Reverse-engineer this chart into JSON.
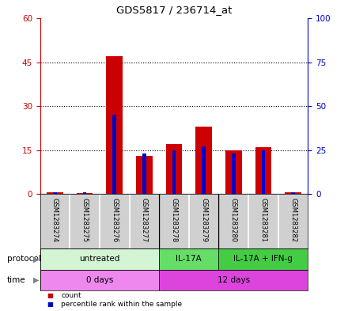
{
  "title": "GDS5817 / 236714_at",
  "samples": [
    "GSM1283274",
    "GSM1283275",
    "GSM1283276",
    "GSM1283277",
    "GSM1283278",
    "GSM1283279",
    "GSM1283280",
    "GSM1283281",
    "GSM1283282"
  ],
  "count_values": [
    0.5,
    0.3,
    47,
    13,
    17,
    23,
    15,
    16,
    0.5
  ],
  "percentile_values": [
    1.0,
    1.0,
    45.0,
    23.0,
    25.0,
    27.0,
    23.0,
    25.0,
    1.0
  ],
  "ylim_left": [
    0,
    60
  ],
  "ylim_right": [
    0,
    100
  ],
  "yticks_left": [
    0,
    15,
    30,
    45,
    60
  ],
  "yticks_right": [
    0,
    25,
    50,
    75,
    100
  ],
  "bar_color": "#cc0000",
  "percentile_color": "#0000cc",
  "bar_width": 0.55,
  "percentile_bar_width": 0.12,
  "protocol_groups": [
    {
      "label": "untreated",
      "start": 0,
      "end": 4,
      "color": "#d4f5d4"
    },
    {
      "label": "IL-17A",
      "start": 4,
      "end": 6,
      "color": "#66dd66"
    },
    {
      "label": "IL-17A + IFN-g",
      "start": 6,
      "end": 9,
      "color": "#44cc44"
    }
  ],
  "time_groups": [
    {
      "label": "0 days",
      "start": 0,
      "end": 4,
      "color": "#ee88ee"
    },
    {
      "label": "12 days",
      "start": 4,
      "end": 9,
      "color": "#dd44dd"
    }
  ],
  "legend_count_label": "count",
  "legend_percentile_label": "percentile rank within the sample",
  "protocol_label": "protocol",
  "time_label": "time",
  "bar_area_bg": "#ffffff",
  "sample_cell_bg": "#d0d0d0",
  "tick_color_left": "#cc0000",
  "tick_color_right": "#0000cc",
  "grid_linestyle": ":",
  "grid_color": "#000000",
  "grid_linewidth": 0.8
}
